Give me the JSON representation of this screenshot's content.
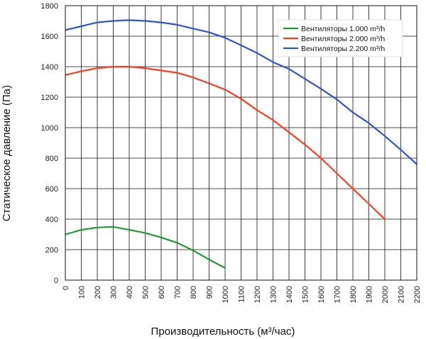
{
  "chart_data": {
    "type": "line",
    "title": "",
    "xlabel": "Производительность (м³/час)",
    "ylabel": "Статическое давление (Па)",
    "xlim": [
      0,
      2200
    ],
    "ylim": [
      0,
      1800
    ],
    "x_ticks": [
      "0",
      "100",
      "200",
      "300",
      "400",
      "500",
      "600",
      "700",
      "800",
      "900",
      "1000",
      "1100",
      "1200",
      "1300",
      "1400",
      "1500",
      "1600",
      "1700",
      "1800",
      "1900",
      "2000",
      "2100",
      "2200"
    ],
    "y_ticks": [
      "0",
      "200",
      "400",
      "600",
      "800",
      "1000",
      "1200",
      "1400",
      "1600",
      "1800"
    ],
    "grid": true,
    "legend_position": "top-right",
    "series": [
      {
        "name": "Вентиляторы 1.000 m³/h",
        "color": "#1f9a3a",
        "x": [
          0,
          100,
          200,
          300,
          400,
          500,
          600,
          700,
          800,
          900,
          1000
        ],
        "y": [
          300,
          330,
          345,
          350,
          330,
          310,
          280,
          245,
          195,
          135,
          80
        ]
      },
      {
        "name": "Вентиляторы 2.000 m³/h",
        "color": "#ff3b1f",
        "x": [
          0,
          100,
          200,
          300,
          400,
          500,
          600,
          700,
          800,
          900,
          1000,
          1100,
          1200,
          1300,
          1400,
          1500,
          1600,
          1700,
          1800,
          1900,
          2000
        ],
        "y": [
          1345,
          1370,
          1390,
          1400,
          1400,
          1390,
          1375,
          1360,
          1330,
          1290,
          1250,
          1190,
          1115,
          1050,
          970,
          890,
          800,
          700,
          600,
          500,
          400
        ]
      },
      {
        "name": "Вентиляторы 2.200 m³/h",
        "color": "#2f55c8",
        "x": [
          0,
          100,
          200,
          300,
          400,
          500,
          600,
          700,
          800,
          900,
          1000,
          1100,
          1200,
          1300,
          1400,
          1500,
          1600,
          1700,
          1800,
          1900,
          2000,
          2100,
          2200
        ],
        "y": [
          1640,
          1665,
          1690,
          1700,
          1705,
          1700,
          1690,
          1675,
          1650,
          1625,
          1590,
          1540,
          1490,
          1430,
          1385,
          1320,
          1255,
          1185,
          1100,
          1030,
          945,
          855,
          760
        ]
      }
    ]
  }
}
